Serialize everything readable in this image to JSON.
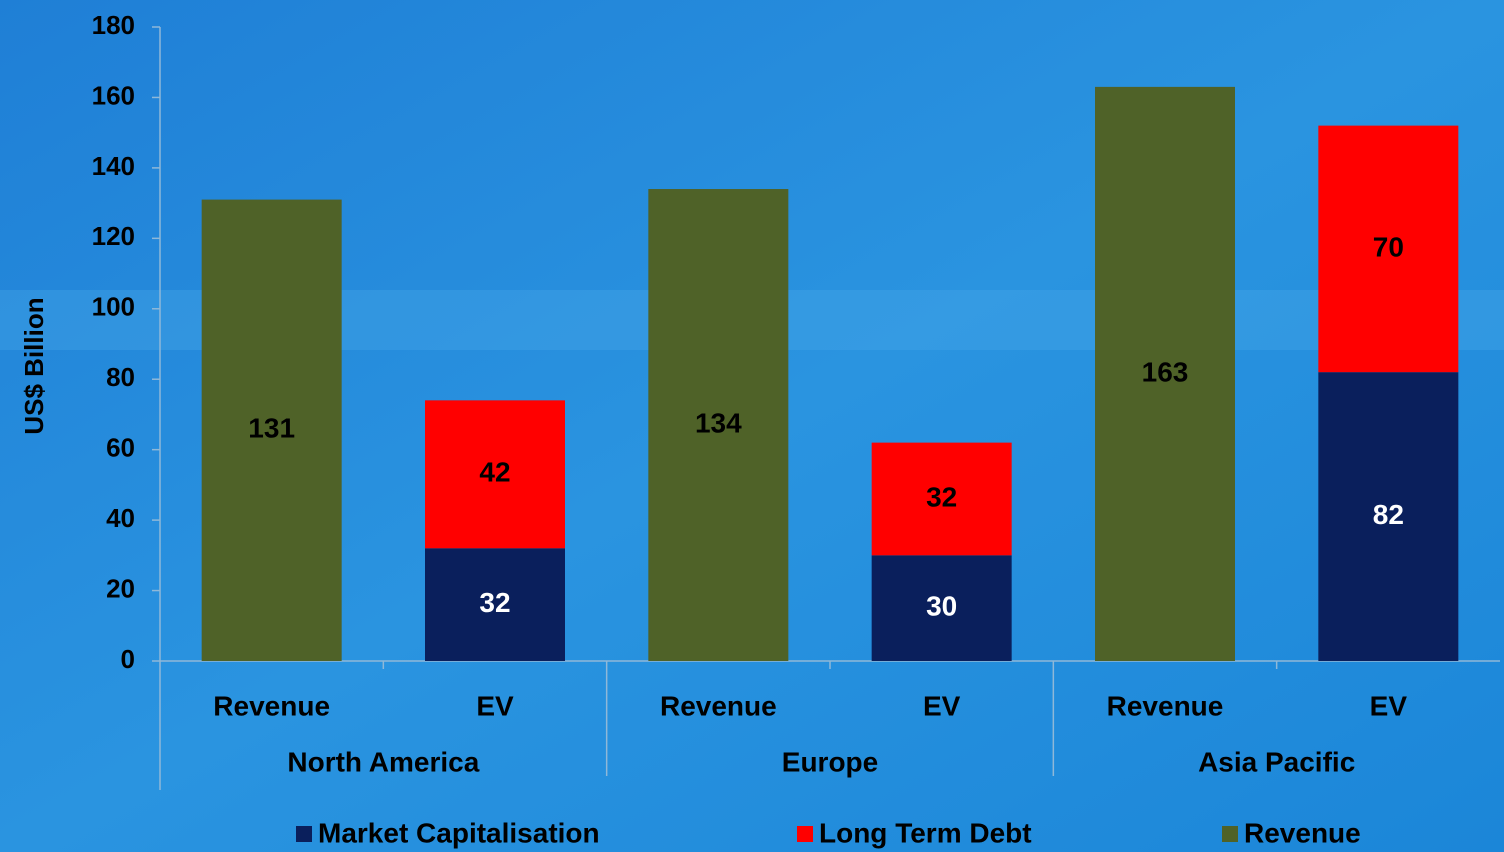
{
  "chart_data": {
    "type": "stacked_bar",
    "y_label": "US$ Billion",
    "categories": [
      "Revenue",
      "EV",
      "Revenue",
      "EV",
      "Revenue",
      "EV"
    ],
    "groups": [
      "North America",
      "Europe",
      "Asia Pacific"
    ],
    "series": [
      {
        "name": "Market Capitalisation",
        "color": "#0a1f5c",
        "label_color": "#ffffff",
        "values": [
          null,
          32,
          null,
          30,
          null,
          82
        ]
      },
      {
        "name": "Long Term Debt",
        "color": "#ff0000",
        "label_color": "#000000",
        "values": [
          null,
          42,
          null,
          32,
          null,
          70
        ]
      },
      {
        "name": "Revenue",
        "color": "#4f6228",
        "label_color": "#000000",
        "values": [
          131,
          null,
          134,
          null,
          163,
          null
        ]
      }
    ],
    "ylim": [
      0,
      180
    ],
    "yticks": [
      0,
      20,
      40,
      60,
      80,
      100,
      120,
      140,
      160,
      180
    ],
    "legend": "bottom"
  }
}
